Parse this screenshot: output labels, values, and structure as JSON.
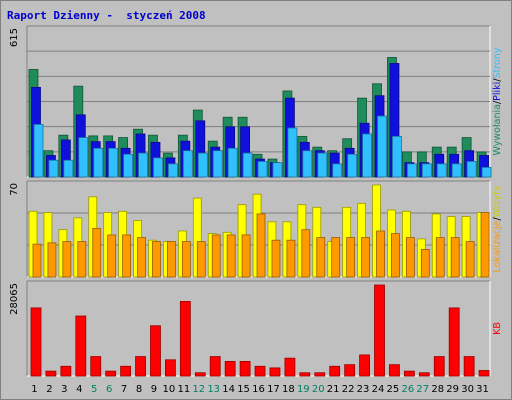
{
  "chart_data": [
    {
      "type": "bar",
      "title": "Raport Dzienny -  styczeń 2008",
      "categories": [
        "1",
        "2",
        "3",
        "4",
        "5",
        "6",
        "7",
        "8",
        "9",
        "10",
        "11",
        "12",
        "13",
        "14",
        "15",
        "16",
        "17",
        "18",
        "19",
        "20",
        "21",
        "22",
        "23",
        "24",
        "25",
        "26",
        "27",
        "28",
        "29",
        "30",
        "31"
      ],
      "weekend_days": [
        "5",
        "6",
        "12",
        "13",
        "19",
        "20",
        "26",
        "27"
      ],
      "ymax_label": "615",
      "ymax": 615,
      "series": [
        {
          "name": "Wywołania",
          "color": "#1f8c5c",
          "values": [
            450,
            110,
            175,
            380,
            172,
            172,
            165,
            200,
            175,
            100,
            175,
            280,
            150,
            250,
            250,
            95,
            75,
            360,
            170,
            125,
            110,
            160,
            330,
            390,
            500,
            105,
            105,
            125,
            125,
            165,
            105
          ]
        },
        {
          "name": "Pliki",
          "color": "#1010dd",
          "values": [
            375,
            90,
            155,
            260,
            148,
            148,
            120,
            180,
            145,
            80,
            150,
            235,
            125,
            210,
            210,
            75,
            60,
            330,
            145,
            110,
            100,
            120,
            225,
            340,
            475,
            60,
            60,
            95,
            95,
            110,
            90
          ]
        },
        {
          "name": "Strony",
          "color": "#30c0ff",
          "values": [
            220,
            70,
            70,
            165,
            120,
            120,
            95,
            100,
            80,
            55,
            110,
            100,
            110,
            120,
            100,
            65,
            60,
            205,
            110,
            100,
            55,
            95,
            180,
            255,
            170,
            55,
            55,
            55,
            55,
            65,
            40
          ]
        }
      ],
      "axis_label_parts": [
        "Wywołania",
        "/",
        "Pliki",
        "/",
        "Strony"
      ]
    },
    {
      "type": "bar",
      "ymax_label": "70",
      "ymax": 70,
      "series": [
        {
          "name": "Wizyty",
          "color": "#ffff00",
          "values": [
            50,
            49,
            36,
            45,
            61,
            49,
            50,
            43,
            28,
            27,
            35,
            60,
            33,
            34,
            55,
            63,
            42,
            42,
            55,
            53,
            27,
            53,
            56,
            70,
            51,
            50,
            29,
            48,
            46,
            46,
            49
          ]
        },
        {
          "name": "Lokalizacje",
          "color": "#ff9900",
          "values": [
            25,
            26,
            27,
            27,
            37,
            32,
            32,
            30,
            27,
            27,
            27,
            27,
            32,
            32,
            32,
            48,
            28,
            28,
            36,
            30,
            30,
            30,
            30,
            35,
            33,
            30,
            21,
            30,
            30,
            27,
            49
          ]
        }
      ],
      "axis_label_parts": [
        "Lokalizacje",
        "/",
        "Wizyty"
      ]
    },
    {
      "type": "bar",
      "ymax_label": "28065",
      "ymax": 28065,
      "series": [
        {
          "name": "KB",
          "color": "#ff0000",
          "values": [
            21000,
            1500,
            3000,
            18500,
            6000,
            1500,
            3000,
            6000,
            15500,
            5000,
            23000,
            1000,
            6000,
            4500,
            4500,
            3000,
            2500,
            5500,
            1000,
            1000,
            3000,
            3500,
            6500,
            28065,
            3500,
            1500,
            1000,
            6000,
            21000,
            6000,
            1700
          ]
        }
      ],
      "axis_label_parts": [
        "KB"
      ]
    }
  ]
}
